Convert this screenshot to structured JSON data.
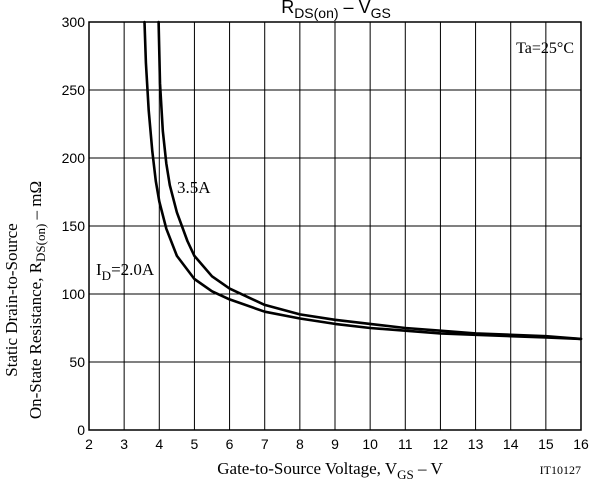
{
  "chart_data": {
    "type": "line",
    "title": {
      "main": "R",
      "sub": "DS(on)",
      "sep": " – ",
      "main2": "V",
      "sub2": "GS"
    },
    "xlabel": {
      "text": "Gate-to-Source Voltage, V",
      "sub": "GS",
      "suffix": "  –  V"
    },
    "ylabel": {
      "line1": "Static Drain-to-Source",
      "line2_prefix": "On-State Resistance, R",
      "line2_sub": "DS(on)",
      "line2_suffix": "  –  mΩ"
    },
    "xlim": [
      2,
      16
    ],
    "ylim": [
      0,
      300
    ],
    "xticks": [
      2,
      3,
      4,
      5,
      6,
      7,
      8,
      9,
      10,
      11,
      12,
      13,
      14,
      15,
      16
    ],
    "yticks": [
      0,
      50,
      100,
      150,
      200,
      250,
      300
    ],
    "grid": true,
    "condition": "Ta=25°C",
    "code": "IT10127",
    "series": [
      {
        "name": "2.0A",
        "label_prefix": "I",
        "label_sub": "D",
        "label_suffix": "=2.0A",
        "x": [
          3.58,
          3.62,
          3.7,
          3.8,
          3.9,
          4.0,
          4.2,
          4.5,
          5.0,
          5.5,
          6.0,
          7.0,
          8.0,
          9.0,
          10.0,
          11.0,
          12.0,
          13.0,
          14.0,
          15.0,
          16.0
        ],
        "y": [
          300,
          270,
          235,
          205,
          183,
          168,
          148,
          128,
          111,
          102,
          96,
          87,
          82,
          78,
          75,
          73,
          71,
          70,
          69,
          68,
          67
        ]
      },
      {
        "name": "3.5A",
        "label_prefix": "",
        "label_sub": "",
        "label_suffix": "3.5A",
        "x": [
          3.98,
          4.02,
          4.1,
          4.2,
          4.3,
          4.5,
          4.8,
          5.0,
          5.5,
          6.0,
          7.0,
          8.0,
          9.0,
          10.0,
          11.0,
          12.0,
          13.0,
          14.0,
          15.0,
          16.0
        ],
        "y": [
          300,
          255,
          220,
          196,
          180,
          160,
          139,
          128,
          113,
          104,
          92,
          85,
          81,
          78,
          75,
          73,
          71,
          70,
          69,
          67
        ]
      }
    ]
  }
}
